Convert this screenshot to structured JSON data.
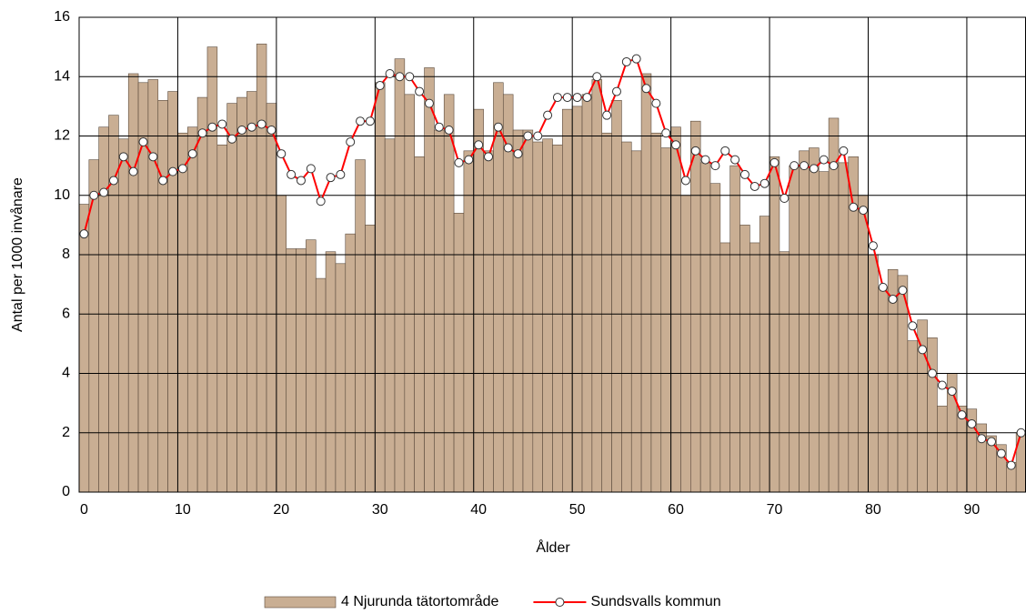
{
  "chart_data": {
    "type": "bar_line",
    "xlabel": "Ålder",
    "ylabel": "Antal per 1000 invånare",
    "categories": [
      0,
      null,
      null,
      null,
      null,
      null,
      null,
      null,
      null,
      null,
      10,
      null,
      null,
      null,
      null,
      null,
      null,
      null,
      null,
      null,
      20,
      null,
      null,
      null,
      null,
      null,
      null,
      null,
      null,
      null,
      30,
      null,
      null,
      null,
      null,
      null,
      null,
      null,
      null,
      null,
      40,
      null,
      null,
      null,
      null,
      null,
      null,
      null,
      null,
      null,
      50,
      null,
      null,
      null,
      null,
      null,
      null,
      null,
      null,
      null,
      60,
      null,
      null,
      null,
      null,
      null,
      null,
      null,
      null,
      null,
      70,
      null,
      null,
      null,
      null,
      null,
      null,
      null,
      null,
      null,
      80,
      null,
      null,
      null,
      null,
      null,
      null,
      null,
      null,
      null,
      90,
      null,
      null,
      null,
      null,
      null
    ],
    "ylim": [
      0,
      16
    ],
    "yticks": [
      0,
      2,
      4,
      6,
      8,
      10,
      12,
      14,
      16
    ],
    "grid": true,
    "legend": "bottom",
    "series": [
      {
        "name": "4 Njurunda tätortområde",
        "kind": "bar",
        "color": "#c9ae93",
        "values": [
          9.7,
          11.2,
          12.3,
          12.7,
          11.9,
          14.1,
          13.8,
          13.9,
          13.2,
          13.5,
          12.1,
          12.3,
          13.3,
          15.0,
          11.7,
          13.1,
          13.3,
          13.5,
          15.1,
          13.1,
          10.0,
          8.2,
          8.2,
          8.5,
          7.2,
          8.1,
          7.7,
          8.7,
          11.2,
          9.0,
          13.8,
          11.9,
          14.6,
          13.4,
          11.3,
          14.3,
          12.2,
          13.4,
          9.4,
          11.5,
          12.9,
          11.5,
          13.8,
          13.4,
          12.2,
          12.2,
          11.8,
          11.9,
          11.7,
          12.9,
          13.0,
          13.4,
          13.9,
          12.1,
          13.2,
          11.8,
          11.5,
          14.1,
          12.1,
          11.6,
          12.3,
          10.0,
          12.5,
          11.1,
          10.4,
          8.4,
          11.0,
          9.0,
          8.4,
          9.3,
          11.3,
          8.1,
          11.0,
          11.5,
          11.6,
          10.8,
          12.6,
          11.1,
          11.3,
          10.0,
          8.0,
          6.9,
          7.5,
          7.3,
          5.1,
          5.8,
          5.2,
          2.9,
          4.0,
          2.9,
          2.8,
          2.3,
          1.9,
          1.6,
          1.0,
          2.0
        ]
      },
      {
        "name": "Sundsvalls kommun",
        "kind": "line",
        "color": "#ff0000",
        "values": [
          8.7,
          10.0,
          10.1,
          10.5,
          11.3,
          10.8,
          11.8,
          11.3,
          10.5,
          10.8,
          10.9,
          11.4,
          12.1,
          12.3,
          12.4,
          11.9,
          12.2,
          12.3,
          12.4,
          12.2,
          11.4,
          10.7,
          10.5,
          10.9,
          9.8,
          10.6,
          10.7,
          11.8,
          12.5,
          12.5,
          13.7,
          14.1,
          14.0,
          14.0,
          13.5,
          13.1,
          12.3,
          12.2,
          11.1,
          11.2,
          11.7,
          11.3,
          12.3,
          11.6,
          11.4,
          12.0,
          12.0,
          12.7,
          13.3,
          13.3,
          13.3,
          13.3,
          14.0,
          12.7,
          13.5,
          14.5,
          14.6,
          13.6,
          13.1,
          12.1,
          11.7,
          10.5,
          11.5,
          11.2,
          11.0,
          11.5,
          11.2,
          10.7,
          10.3,
          10.4,
          11.1,
          9.9,
          11.0,
          11.0,
          10.9,
          11.2,
          11.0,
          11.5,
          9.6,
          9.5,
          8.3,
          6.9,
          6.5,
          6.8,
          5.6,
          4.8,
          4.0,
          3.6,
          3.4,
          2.6,
          2.3,
          1.8,
          1.7,
          1.3,
          0.9,
          2.0
        ]
      }
    ]
  }
}
